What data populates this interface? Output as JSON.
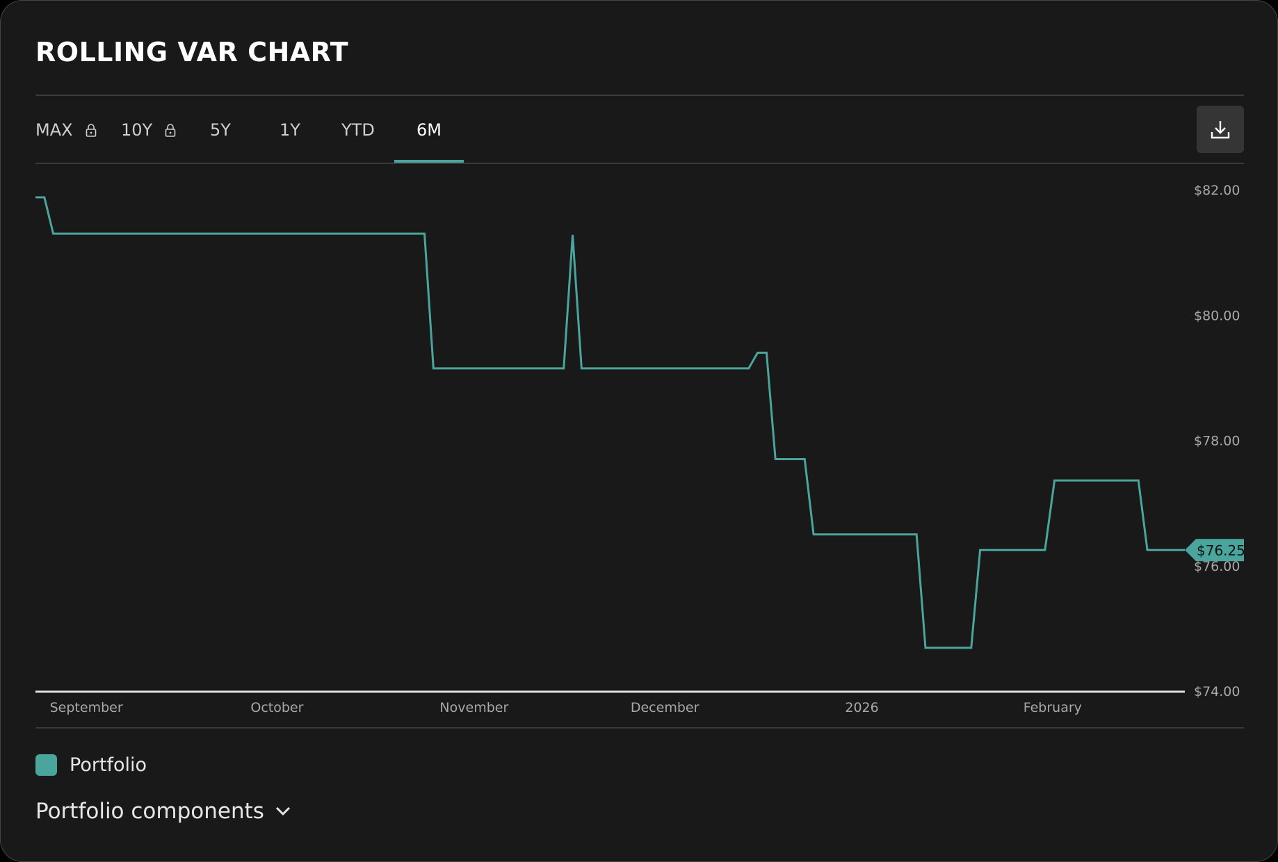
{
  "header": {
    "title": "ROLLING VAR CHART"
  },
  "tabs": [
    {
      "label": "MAX",
      "locked": true
    },
    {
      "label": "10Y",
      "locked": true
    },
    {
      "label": "5Y",
      "locked": false
    },
    {
      "label": "1Y",
      "locked": false
    },
    {
      "label": "YTD",
      "locked": false
    },
    {
      "label": "6M",
      "locked": false,
      "active": true
    }
  ],
  "toolbar": {
    "download_icon": "download-icon"
  },
  "legend": {
    "label": "Portfolio",
    "color": "#4aa59c"
  },
  "components": {
    "label": "Portfolio components",
    "icon": "chevron-down-icon"
  },
  "chart_data": {
    "type": "line",
    "title": "ROLLING VAR CHART",
    "xlabel": "",
    "ylabel": "",
    "ylim": [
      74,
      82
    ],
    "yticks": [
      {
        "value": 82,
        "label": "$82.00"
      },
      {
        "value": 80,
        "label": "$80.00"
      },
      {
        "value": 78,
        "label": "$78.00"
      },
      {
        "value": 76,
        "label": "$76.00"
      },
      {
        "value": 74,
        "label": "$74.00"
      }
    ],
    "xlim": [
      0,
      180.8
    ],
    "x_unit": "days since Aug 24",
    "xticks": [
      {
        "value": 8,
        "label": "September"
      },
      {
        "value": 38,
        "label": "October"
      },
      {
        "value": 69,
        "label": "November"
      },
      {
        "value": 99,
        "label": "December"
      },
      {
        "value": 130,
        "label": "2026"
      },
      {
        "value": 160,
        "label": "February"
      }
    ],
    "current_value_label": "$76.25",
    "series": [
      {
        "name": "Portfolio",
        "color": "#4aa59c",
        "x": [
          0,
          1.4,
          2.8,
          61.2,
          62.6,
          83.1,
          84.5,
          85.9,
          112.2,
          113.6,
          115.0,
          116.4,
          121.0,
          122.4,
          138.6,
          140.0,
          147.2,
          148.6,
          158.8,
          160.3,
          173.5,
          174.9,
          180.8
        ],
        "values": [
          81.88,
          81.88,
          81.3,
          81.3,
          79.15,
          79.15,
          81.28,
          79.15,
          79.15,
          79.4,
          79.4,
          77.7,
          77.7,
          76.5,
          76.5,
          74.69,
          74.69,
          76.25,
          76.25,
          77.36,
          77.36,
          76.25,
          76.25
        ]
      }
    ]
  }
}
